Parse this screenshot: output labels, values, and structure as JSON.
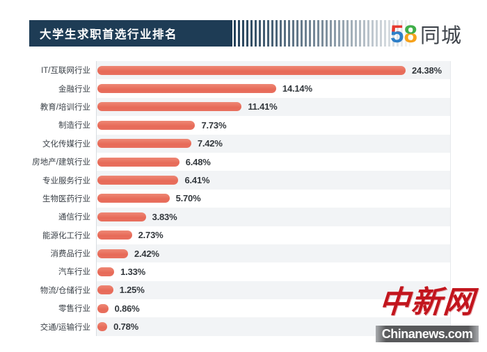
{
  "header": {
    "title": "大学生求职首选行业排名",
    "logo": {
      "five": "5",
      "eight": "8",
      "name": "同城"
    }
  },
  "chart_data": {
    "type": "bar",
    "orientation": "horizontal",
    "title": "大学生求职首选行业排名",
    "categories": [
      "IT/互联网行业",
      "金融行业",
      "教育/培训行业",
      "制造行业",
      "文化传媒行业",
      "房地产/建筑行业",
      "专业服务行业",
      "生物医药行业",
      "通信行业",
      "能源化工行业",
      "消费品行业",
      "汽车行业",
      "物流/仓储行业",
      "零售行业",
      "交通/运输行业"
    ],
    "values": [
      24.38,
      14.14,
      11.41,
      7.73,
      7.42,
      6.48,
      6.41,
      5.7,
      3.83,
      2.73,
      2.42,
      1.33,
      1.25,
      0.86,
      0.78
    ],
    "value_labels": [
      "24.38%",
      "14.14%",
      "11.41%",
      "7.73%",
      "7.42%",
      "6.48%",
      "6.41%",
      "5.70%",
      "3.83%",
      "2.73%",
      "2.42%",
      "1.33%",
      "1.25%",
      "0.86%",
      "0.78%"
    ],
    "unit": "%",
    "xlim": [
      0,
      28
    ],
    "grid": false,
    "legend": false,
    "bar_color": "#e8705f",
    "row_stripe_color": "#f2f4f6"
  },
  "watermark": {
    "site_cn": "中新网",
    "site_en": "Chinanews.com"
  },
  "colors": {
    "header_navy": "#1e3c55",
    "bar": "#e8705f",
    "value_text": "#33383d",
    "label_text": "#3a4047",
    "watermark_red": "#c2151d"
  }
}
